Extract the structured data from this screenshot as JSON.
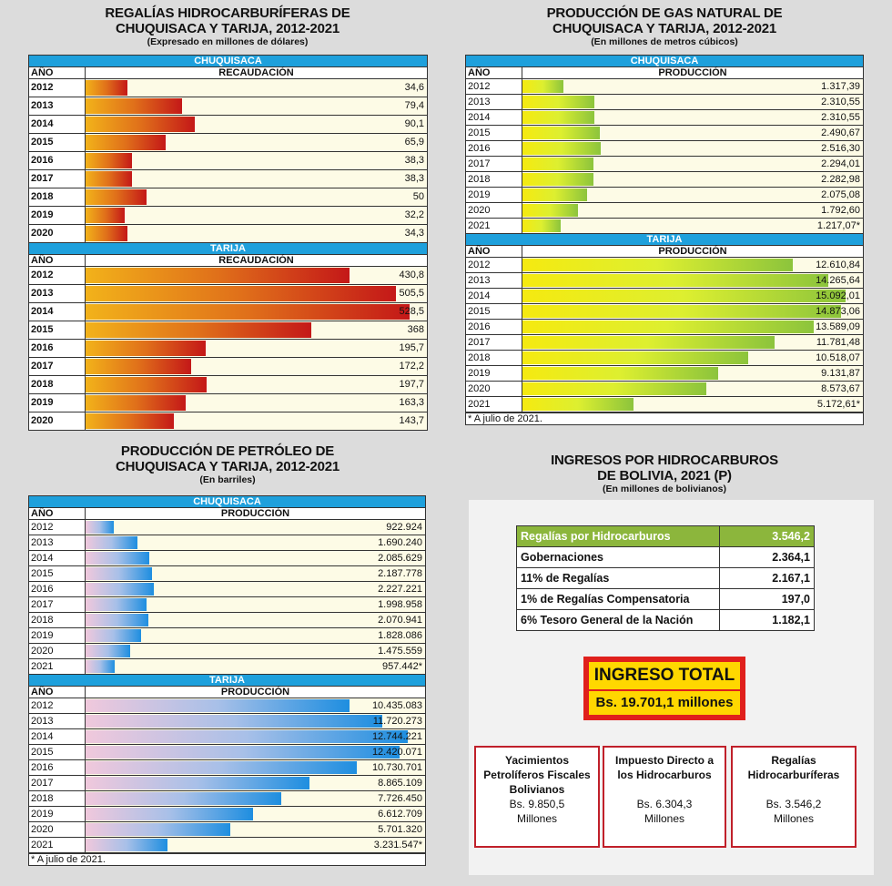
{
  "royalties": {
    "title1": "REGALÍAS HIDROCARBURÍFERAS DE",
    "title2": "CHUQUISACA Y TARIJA, 2012-2021",
    "subtitle": "(Expresado en millones de dólares)",
    "col_year": "AÑO",
    "col_value": "RECAUDACIÓN",
    "chuquisaca_label": "CHUQUISACA",
    "tarija_label": "TARIJA",
    "chuquisaca": [
      {
        "year": "2012",
        "value": 34.6,
        "label": "34,6"
      },
      {
        "year": "2013",
        "value": 79.4,
        "label": "79,4"
      },
      {
        "year": "2014",
        "value": 90.1,
        "label": "90,1"
      },
      {
        "year": "2015",
        "value": 65.9,
        "label": "65,9"
      },
      {
        "year": "2016",
        "value": 38.3,
        "label": "38,3"
      },
      {
        "year": "2017",
        "value": 38.3,
        "label": "38,3"
      },
      {
        "year": "2018",
        "value": 50,
        "label": "50"
      },
      {
        "year": "2019",
        "value": 32.2,
        "label": "32,2"
      },
      {
        "year": "2020",
        "value": 34.3,
        "label": "34,3"
      }
    ],
    "tarija": [
      {
        "year": "2012",
        "value": 430.8,
        "label": "430,8"
      },
      {
        "year": "2013",
        "value": 505.5,
        "label": "505,5"
      },
      {
        "year": "2014",
        "value": 528.5,
        "label": "528,5"
      },
      {
        "year": "2015",
        "value": 368,
        "label": "368"
      },
      {
        "year": "2016",
        "value": 195.7,
        "label": "195,7"
      },
      {
        "year": "2017",
        "value": 172.2,
        "label": "172,2"
      },
      {
        "year": "2018",
        "value": 197.7,
        "label": "197,7"
      },
      {
        "year": "2019",
        "value": 163.3,
        "label": "163,3"
      },
      {
        "year": "2020",
        "value": 143.7,
        "label": "143,7"
      }
    ]
  },
  "gas": {
    "title1": "PRODUCCIÓN DE GAS NATURAL DE",
    "title2": "CHUQUISACA Y TARIJA, 2012-2021",
    "subtitle": "(En millones de metros cúbicos)",
    "col_year": "AÑO",
    "col_value": "PRODUCCIÓN",
    "chuquisaca_label": "CHUQUISACA",
    "tarija_label": "TARIJA",
    "note": "* A julio de 2021.",
    "chuquisaca": [
      {
        "year": "2012",
        "value": 1317.39,
        "label": "1.317,39"
      },
      {
        "year": "2013",
        "value": 2310.55,
        "label": "2.310,55"
      },
      {
        "year": "2014",
        "value": 2310.55,
        "label": "2.310,55"
      },
      {
        "year": "2015",
        "value": 2490.67,
        "label": "2.490,67"
      },
      {
        "year": "2016",
        "value": 2516.3,
        "label": "2.516,30"
      },
      {
        "year": "2017",
        "value": 2294.01,
        "label": "2.294,01"
      },
      {
        "year": "2018",
        "value": 2282.98,
        "label": "2.282,98"
      },
      {
        "year": "2019",
        "value": 2075.08,
        "label": "2.075,08"
      },
      {
        "year": "2020",
        "value": 1792.6,
        "label": "1.792,60"
      },
      {
        "year": "2021",
        "value": 1217.07,
        "label": "1.217,07*"
      }
    ],
    "tarija": [
      {
        "year": "2012",
        "value": 12610.84,
        "label": "12.610,84"
      },
      {
        "year": "2013",
        "value": 14265.64,
        "label": "14.265,64"
      },
      {
        "year": "2014",
        "value": 15092.01,
        "label": "15.092,01"
      },
      {
        "year": "2015",
        "value": 14873.06,
        "label": "14.873,06"
      },
      {
        "year": "2016",
        "value": 13589.09,
        "label": "13.589,09"
      },
      {
        "year": "2017",
        "value": 11781.48,
        "label": "11.781,48"
      },
      {
        "year": "2018",
        "value": 10518.07,
        "label": "10.518,07"
      },
      {
        "year": "2019",
        "value": 9131.87,
        "label": "9.131,87"
      },
      {
        "year": "2020",
        "value": 8573.67,
        "label": "8.573,67"
      },
      {
        "year": "2021",
        "value": 5172.61,
        "label": "5.172,61*"
      }
    ]
  },
  "oil": {
    "title1": "PRODUCCIÓN DE PETRÓLEO DE",
    "title2": "CHUQUISACA Y TARIJA, 2012-2021",
    "subtitle": "(En barriles)",
    "col_year": "AÑO",
    "col_value": "PRODUCCIÓN",
    "chuquisaca_label": "CHUQUISACA",
    "tarija_label": "TARIJA",
    "note": "* A julio de 2021.",
    "chuquisaca": [
      {
        "year": "2012",
        "value": 922924,
        "label": "922.924"
      },
      {
        "year": "2013",
        "value": 1690240,
        "label": "1.690.240"
      },
      {
        "year": "2014",
        "value": 2085629,
        "label": "2.085.629"
      },
      {
        "year": "2015",
        "value": 2187778,
        "label": "2.187.778"
      },
      {
        "year": "2016",
        "value": 2227221,
        "label": "2.227.221"
      },
      {
        "year": "2017",
        "value": 1998958,
        "label": "1.998.958"
      },
      {
        "year": "2018",
        "value": 2070941,
        "label": "2.070.941"
      },
      {
        "year": "2019",
        "value": 1828086,
        "label": "1.828.086"
      },
      {
        "year": "2020",
        "value": 1475559,
        "label": "1.475.559"
      },
      {
        "year": "2021",
        "value": 957442,
        "label": "957.442*"
      }
    ],
    "tarija": [
      {
        "year": "2012",
        "value": 10435083,
        "label": "10.435.083"
      },
      {
        "year": "2013",
        "value": 11720273,
        "label": "11.720.273"
      },
      {
        "year": "2014",
        "value": 12744221,
        "label": "12.744.221"
      },
      {
        "year": "2015",
        "value": 12420071,
        "label": "12.420.071"
      },
      {
        "year": "2016",
        "value": 10730701,
        "label": "10.730.701"
      },
      {
        "year": "2017",
        "value": 8865109,
        "label": "8.865.109"
      },
      {
        "year": "2018",
        "value": 7726450,
        "label": "7.726.450"
      },
      {
        "year": "2019",
        "value": 6612709,
        "label": "6.612.709"
      },
      {
        "year": "2020",
        "value": 5701320,
        "label": "5.701.320"
      },
      {
        "year": "2021",
        "value": 3231547,
        "label": "3.231.547*"
      }
    ]
  },
  "income": {
    "title1": "INGRESOS POR HIDROCARBUROS",
    "title2": "DE BOLIVIA, 2021 (P)",
    "subtitle": "(En millones de bolivianos)",
    "rows": [
      {
        "label": "Regalías por Hidrocarburos",
        "value": "3.546,2"
      },
      {
        "label": "Gobernaciones",
        "value": "2.364,1"
      },
      {
        "label": "11% de Regalías",
        "value": "2.167,1"
      },
      {
        "label": "1% de Regalías Compensatoria",
        "value": "197,0"
      },
      {
        "label": "6% Tesoro General de la Nación",
        "value": "1.182,1"
      }
    ],
    "total_label": "INGRESO TOTAL",
    "total_value": "Bs. 19.701,1 millones",
    "boxes": [
      {
        "l1": "Yacimientos",
        "l2": "Petrolíferos Fiscales",
        "l3": "Bolivianos",
        "amt": "Bs. 9.850,5",
        "unit": "Millones"
      },
      {
        "l1": "Impuesto Directo a",
        "l2": "los Hidrocarburos",
        "l3": "",
        "amt": "Bs. 6.304,3",
        "unit": "Millones"
      },
      {
        "l1": "Regalías",
        "l2": "Hidrocarburíferas",
        "l3": "",
        "amt": "Bs. 3.546,2",
        "unit": "Millones"
      }
    ]
  },
  "chart_data": [
    {
      "type": "bar",
      "title": "REGALÍAS HIDROCARBURÍFERAS DE CHUQUISACA Y TARIJA, 2012-2021",
      "categories": [
        "2012",
        "2013",
        "2014",
        "2015",
        "2016",
        "2017",
        "2018",
        "2019",
        "2020"
      ],
      "series": [
        {
          "name": "CHUQUISACA",
          "values": [
            34.6,
            79.4,
            90.1,
            65.9,
            38.3,
            38.3,
            50,
            32.2,
            34.3
          ]
        },
        {
          "name": "TARIJA",
          "values": [
            430.8,
            505.5,
            528.5,
            368,
            195.7,
            172.2,
            197.7,
            163.3,
            143.7
          ]
        }
      ]
    },
    {
      "type": "bar",
      "title": "PRODUCCIÓN DE GAS NATURAL DE CHUQUISACA Y TARIJA, 2012-2021",
      "categories": [
        "2012",
        "2013",
        "2014",
        "2015",
        "2016",
        "2017",
        "2018",
        "2019",
        "2020",
        "2021"
      ],
      "series": [
        {
          "name": "CHUQUISACA",
          "values": [
            1317.39,
            2310.55,
            2310.55,
            2490.67,
            2516.3,
            2294.01,
            2282.98,
            2075.08,
            1792.6,
            1217.07
          ]
        },
        {
          "name": "TARIJA",
          "values": [
            12610.84,
            14265.64,
            15092.01,
            14873.06,
            13589.09,
            11781.48,
            10518.07,
            9131.87,
            8573.67,
            5172.61
          ]
        }
      ]
    },
    {
      "type": "bar",
      "title": "PRODUCCIÓN DE PETRÓLEO DE CHUQUISACA Y TARIJA, 2012-2021",
      "categories": [
        "2012",
        "2013",
        "2014",
        "2015",
        "2016",
        "2017",
        "2018",
        "2019",
        "2020",
        "2021"
      ],
      "series": [
        {
          "name": "CHUQUISACA",
          "values": [
            922924,
            1690240,
            2085629,
            2187778,
            2227221,
            1998958,
            2070941,
            1828086,
            1475559,
            957442
          ]
        },
        {
          "name": "TARIJA",
          "values": [
            10435083,
            11720273,
            12744221,
            12420071,
            10730701,
            8865109,
            7726450,
            6612709,
            5701320,
            3231547
          ]
        }
      ]
    }
  ]
}
